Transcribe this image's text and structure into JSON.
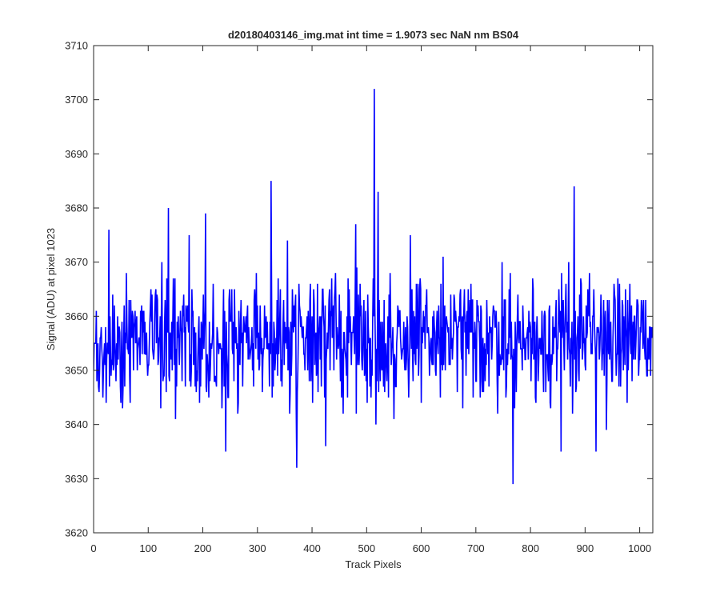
{
  "chart_data": {
    "type": "line",
    "title": "d20180403146_img.mat int time = 1.9073 sec  NaN nm BS04",
    "xlabel": "Track Pixels",
    "ylabel": "Signal (ADU) at pixel 1023",
    "xlim": [
      0,
      1024
    ],
    "ylim": [
      3620,
      3710
    ],
    "xticks": [
      0,
      100,
      200,
      300,
      400,
      500,
      600,
      700,
      800,
      900,
      1000
    ],
    "yticks": [
      3620,
      3630,
      3640,
      3650,
      3660,
      3670,
      3680,
      3690,
      3700,
      3710
    ],
    "grid": false,
    "legend": "none",
    "series": [
      {
        "color": "#0000ff",
        "n_points": 1024,
        "baseline": 3656,
        "noise_amplitude": 8,
        "x": [
          0,
          5,
          10,
          20,
          28,
          40,
          60,
          100,
          123,
          125,
          137,
          150,
          175,
          190,
          205,
          220,
          242,
          300,
          325,
          327,
          355,
          372,
          400,
          425,
          480,
          514,
          517,
          521,
          550,
          580,
          600,
          640,
          700,
          748,
          768,
          770,
          810,
          856,
          870,
          880,
          883,
          920,
          1023
        ],
        "y": [
          3650,
          3661,
          3646,
          3655,
          3676,
          3652,
          3668,
          3651,
          3643,
          3670,
          3680,
          3641,
          3675,
          3648,
          3679,
          3656,
          3635,
          3662,
          3685,
          3645,
          3674,
          3632,
          3660,
          3636,
          3677,
          3702,
          3640,
          3683,
          3641,
          3675,
          3644,
          3671,
          3648,
          3670,
          3629,
          3650,
          3644,
          3635,
          3670,
          3684,
          3646,
          3635,
          3658
        ]
      }
    ]
  }
}
